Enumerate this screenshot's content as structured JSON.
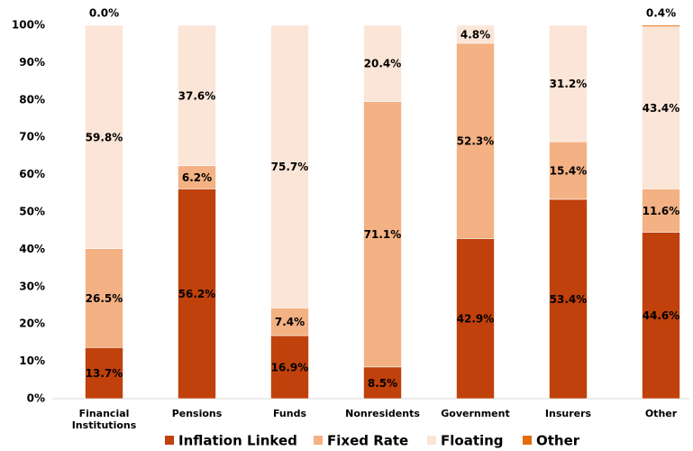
{
  "chart_data": {
    "type": "stacked-bar",
    "categories": [
      "Financial Institutions",
      "Pensions",
      "Funds",
      "Nonresidents",
      "Government",
      "Insurers",
      "Other"
    ],
    "series": [
      {
        "name": "Inflation Linked",
        "color": "#c0410c",
        "values": [
          13.7,
          56.2,
          16.9,
          8.5,
          42.9,
          53.4,
          44.6
        ],
        "value_labels": [
          "13.7%",
          "56.2%",
          "16.9%",
          "8.5%",
          "42.9%",
          "53.4%",
          "44.6%"
        ]
      },
      {
        "name": "Fixed Rate",
        "color": "#f4b183",
        "values": [
          26.5,
          6.2,
          7.4,
          71.1,
          52.3,
          15.4,
          11.6
        ],
        "value_labels": [
          "26.5%",
          "6.2%",
          "7.4%",
          "71.1%",
          "52.3%",
          "15.4%",
          "11.6%"
        ]
      },
      {
        "name": "Floating",
        "color": "#fbe5d6",
        "values": [
          59.8,
          37.6,
          75.7,
          20.4,
          4.8,
          31.2,
          43.4
        ],
        "value_labels": [
          "59.8%",
          "37.6%",
          "75.7%",
          "20.4%",
          "4.8%",
          "31.2%",
          "43.4%"
        ]
      },
      {
        "name": "Other",
        "color": "#e36c09",
        "values": [
          0.0,
          0,
          0,
          0,
          0,
          0,
          0.4
        ],
        "value_labels": [
          "0.0%",
          null,
          null,
          null,
          null,
          null,
          "0.4%"
        ]
      }
    ],
    "ylim": [
      0,
      100
    ],
    "yticks": [
      {
        "value": 0,
        "label": "0%"
      },
      {
        "value": 10,
        "label": "10%"
      },
      {
        "value": 20,
        "label": "20%"
      },
      {
        "value": 30,
        "label": "30%"
      },
      {
        "value": 40,
        "label": "40%"
      },
      {
        "value": 50,
        "label": "50%"
      },
      {
        "value": 60,
        "label": "60%"
      },
      {
        "value": 70,
        "label": "70%"
      },
      {
        "value": 80,
        "label": "80%"
      },
      {
        "value": 90,
        "label": "90%"
      },
      {
        "value": 100,
        "label": "100%"
      }
    ],
    "legend": "bottom"
  }
}
